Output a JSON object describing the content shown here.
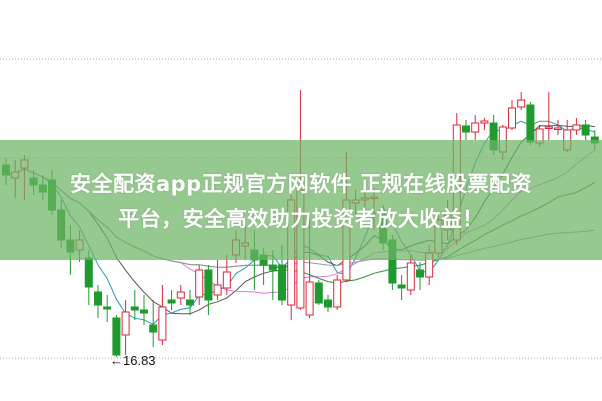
{
  "banner": {
    "line1": "安全配资app正规官方网软件 正规在线股票配资",
    "line2": "平台，安全高效助力投资者放大收益！",
    "background": "#6eb464"
  },
  "chart_data": {
    "type": "candlestick",
    "title": "",
    "xlabel": "",
    "ylabel": "",
    "ylim": [
      16.81,
      22.79
    ],
    "grid": "dotted horizontal",
    "colors": {
      "up": "#d9263a",
      "down": "#1e9a2e",
      "ma": [
        "#2a9bb5",
        "#555555",
        "#e27ae0",
        "#2f8f3a",
        "#9a9a9a"
      ]
    },
    "annotation": {
      "text": "←16.83",
      "value": 16.83
    },
    "candles": [
      [
        20.67,
        20.47,
        20.81,
        20.27
      ],
      [
        20.41,
        20.53,
        20.77,
        20.01
      ],
      [
        20.61,
        20.77,
        20.87,
        19.97
      ],
      [
        20.41,
        20.27,
        20.57,
        20.07
      ],
      [
        20.27,
        20.13,
        20.47,
        19.97
      ],
      [
        20.37,
        19.77,
        20.57,
        19.67
      ],
      [
        19.77,
        19.17,
        19.97,
        19.01
      ],
      [
        19.17,
        18.93,
        19.47,
        18.47
      ],
      [
        18.97,
        19.17,
        19.37,
        18.73
      ],
      [
        18.81,
        18.23,
        18.97,
        17.87
      ],
      [
        18.13,
        17.87,
        18.27,
        17.61
      ],
      [
        17.83,
        17.79,
        18.07,
        17.53
      ],
      [
        17.61,
        16.87,
        17.67,
        16.83
      ],
      [
        17.27,
        17.73,
        17.97,
        16.87
      ],
      [
        17.83,
        17.77,
        18.17,
        17.57
      ],
      [
        17.77,
        17.71,
        18.07,
        17.47
      ],
      [
        17.47,
        17.33,
        17.97,
        17.03
      ],
      [
        17.17,
        17.83,
        18.27,
        17.07
      ],
      [
        17.97,
        17.91,
        18.17,
        17.77
      ],
      [
        18.01,
        18.13,
        18.27,
        17.87
      ],
      [
        17.97,
        17.87,
        18.17,
        17.67
      ],
      [
        18.03,
        18.57,
        18.67,
        17.87
      ],
      [
        18.57,
        17.97,
        18.67,
        17.67
      ],
      [
        18.07,
        18.27,
        18.77,
        17.97
      ],
      [
        18.21,
        18.53,
        18.87,
        18.07
      ],
      [
        18.87,
        19.17,
        19.37,
        18.71
      ],
      [
        19.05,
        19.11,
        19.47,
        18.77
      ],
      [
        18.97,
        18.77,
        19.37,
        18.17
      ],
      [
        18.87,
        18.67,
        19.01,
        18.27
      ],
      [
        18.67,
        18.57,
        18.97,
        17.97
      ],
      [
        18.67,
        17.97,
        19.07,
        17.87
      ],
      [
        17.87,
        19.97,
        20.07,
        17.57
      ],
      [
        17.81,
        20.17,
        22.17,
        17.77
      ],
      [
        17.67,
        18.33,
        19.67,
        17.61
      ],
      [
        18.31,
        17.91,
        18.37,
        17.87
      ],
      [
        17.97,
        17.83,
        18.07,
        17.73
      ],
      [
        17.83,
        18.37,
        18.47,
        17.77
      ],
      [
        18.37,
        19.97,
        20.93,
        18.33
      ],
      [
        19.91,
        19.97,
        20.17,
        19.67
      ],
      [
        19.97,
        20.01,
        20.27,
        19.77
      ],
      [
        20.01,
        20.03,
        20.21,
        19.37
      ],
      [
        19.71,
        19.11,
        19.87,
        18.97
      ],
      [
        19.17,
        18.31,
        19.27,
        18.17
      ],
      [
        18.27,
        18.21,
        18.47,
        17.97
      ],
      [
        18.17,
        18.71,
        18.87,
        18.07
      ],
      [
        18.57,
        18.43,
        18.73,
        18.17
      ],
      [
        18.43,
        18.91,
        19.07,
        18.27
      ],
      [
        18.91,
        19.57,
        19.67,
        18.81
      ],
      [
        19.37,
        19.67,
        19.97,
        19.17
      ],
      [
        19.17,
        21.47,
        21.71,
        19.07
      ],
      [
        21.45,
        21.33,
        21.57,
        21.17
      ],
      [
        21.33,
        21.51,
        21.67,
        21.17
      ],
      [
        21.51,
        21.55,
        21.61,
        21.37
      ],
      [
        21.51,
        20.97,
        21.67,
        20.87
      ],
      [
        20.93,
        21.43,
        21.47,
        20.77
      ],
      [
        21.41,
        21.81,
        21.97,
        21.37
      ],
      [
        21.83,
        21.97,
        22.13,
        21.77
      ],
      [
        21.87,
        21.13,
        21.93,
        21.07
      ],
      [
        21.11,
        21.39,
        21.47,
        21.03
      ],
      [
        21.41,
        21.43,
        22.13,
        21.17
      ],
      [
        21.41,
        21.41,
        21.57,
        21.27
      ],
      [
        20.97,
        21.37,
        21.57,
        20.93
      ],
      [
        21.37,
        21.47,
        21.61,
        21.27
      ],
      [
        21.47,
        21.27,
        21.57,
        21.17
      ],
      [
        21.23,
        21.11,
        21.37,
        20.97
      ]
    ],
    "candle_fields": [
      "open",
      "close",
      "high",
      "low"
    ],
    "moving_averages": [
      5,
      10,
      20,
      30,
      60
    ]
  }
}
